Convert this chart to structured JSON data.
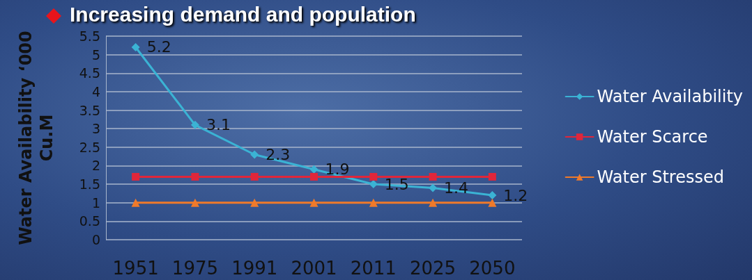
{
  "chart_data": {
    "type": "line",
    "title": "Increasing demand and population",
    "ylabel": "Water Availability ‘000\nCu.M",
    "categories": [
      "1951",
      "1975",
      "1991",
      "2001",
      "2011",
      "2025",
      "2050"
    ],
    "series": [
      {
        "name": "Water Availability",
        "color": "#3bb3d4",
        "marker": "diamond",
        "values": [
          5.2,
          3.1,
          2.3,
          1.9,
          1.5,
          1.4,
          1.2
        ],
        "value_labels": [
          "5.2",
          "3.1",
          "2.3",
          "1.9",
          "1.5",
          "1.4",
          "1.2"
        ]
      },
      {
        "name": "Water Scarce",
        "color": "#e0263a",
        "marker": "square",
        "values": [
          1.7,
          1.7,
          1.7,
          1.7,
          1.7,
          1.7,
          1.7
        ]
      },
      {
        "name": "Water Stressed",
        "color": "#f07a2a",
        "marker": "triangle",
        "values": [
          1,
          1,
          1,
          1,
          1,
          1,
          1
        ]
      }
    ],
    "ylim": [
      0,
      5.5
    ],
    "yticks": [
      0,
      0.5,
      1,
      1.5,
      2,
      2.5,
      3,
      3.5,
      4,
      4.5,
      5,
      5.5
    ],
    "grid": "y",
    "legend": "right"
  }
}
